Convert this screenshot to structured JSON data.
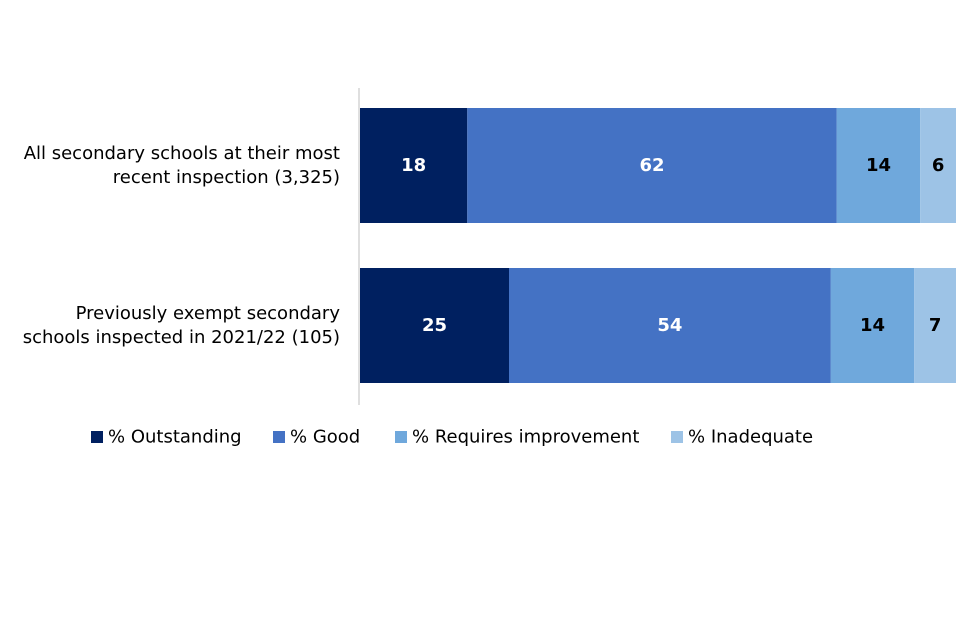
{
  "chart_data": {
    "type": "bar",
    "orientation": "horizontal",
    "stacked": true,
    "percent_stacked": true,
    "categories": [
      [
        "All secondary schools at their most",
        "recent inspection (3,325)"
      ],
      [
        "Previously exempt secondary",
        "schools inspected in 2021/22 (105)"
      ]
    ],
    "series": [
      {
        "name": "% Outstanding",
        "values": [
          18,
          25
        ],
        "color": "#002060",
        "label_color": "#ffffff"
      },
      {
        "name": "% Good",
        "values": [
          62,
          54
        ],
        "color": "#4472C4",
        "label_color": "#ffffff"
      },
      {
        "name": "% Requires improvement",
        "values": [
          14,
          14
        ],
        "color": "#6FA8DC",
        "label_color": "#000000"
      },
      {
        "name": "% Inadequate",
        "values": [
          6,
          7
        ],
        "color": "#9DC3E6",
        "label_color": "#000000"
      }
    ],
    "xlim": [
      0,
      100
    ],
    "grid": false,
    "legend_position": "bottom",
    "axis_line_color": "#BFBFBF"
  }
}
